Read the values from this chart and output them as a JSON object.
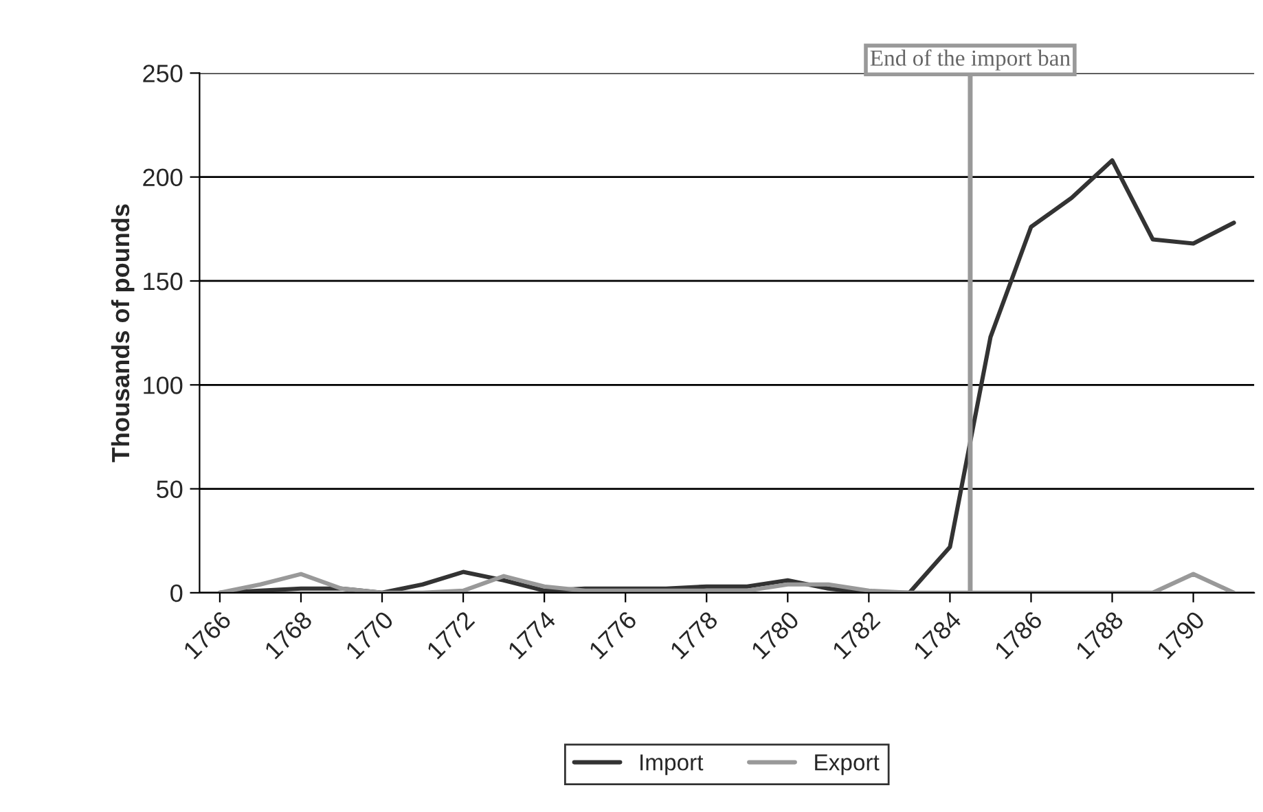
{
  "chart_data": {
    "type": "line",
    "ylabel": "Thousands of pounds",
    "x": [
      1766,
      1767,
      1768,
      1769,
      1770,
      1771,
      1772,
      1773,
      1774,
      1775,
      1776,
      1777,
      1778,
      1779,
      1780,
      1781,
      1782,
      1783,
      1784,
      1785,
      1786,
      1787,
      1788,
      1789,
      1790,
      1791
    ],
    "series": [
      {
        "name": "Import",
        "color": "#333333",
        "values": [
          0,
          1,
          2,
          2,
          0,
          4,
          10,
          6,
          1,
          2,
          2,
          2,
          3,
          3,
          6,
          2,
          0,
          0,
          22,
          123,
          176,
          190,
          208,
          170,
          168,
          178
        ]
      },
      {
        "name": "Export",
        "color": "#999999",
        "values": [
          0,
          4,
          9,
          2,
          0,
          0,
          1,
          8,
          3,
          1,
          1,
          1,
          1,
          1,
          4,
          4,
          1,
          0,
          0,
          0,
          0,
          0,
          0,
          0,
          9,
          0
        ]
      }
    ],
    "xlim": [
      1765.5,
      1791.5
    ],
    "xticks": [
      1766,
      1768,
      1770,
      1772,
      1774,
      1776,
      1778,
      1780,
      1782,
      1784,
      1786,
      1788,
      1790
    ],
    "ylim": [
      0,
      250
    ],
    "yticks": [
      0,
      50,
      100,
      150,
      200,
      250
    ],
    "ref_lines": [
      {
        "axis": "x",
        "value": 1784.5,
        "label": "End of the import ban",
        "color": "#999999"
      }
    ],
    "grid": "y",
    "legend": "bottom",
    "marker": "none",
    "line_style": "solid"
  }
}
